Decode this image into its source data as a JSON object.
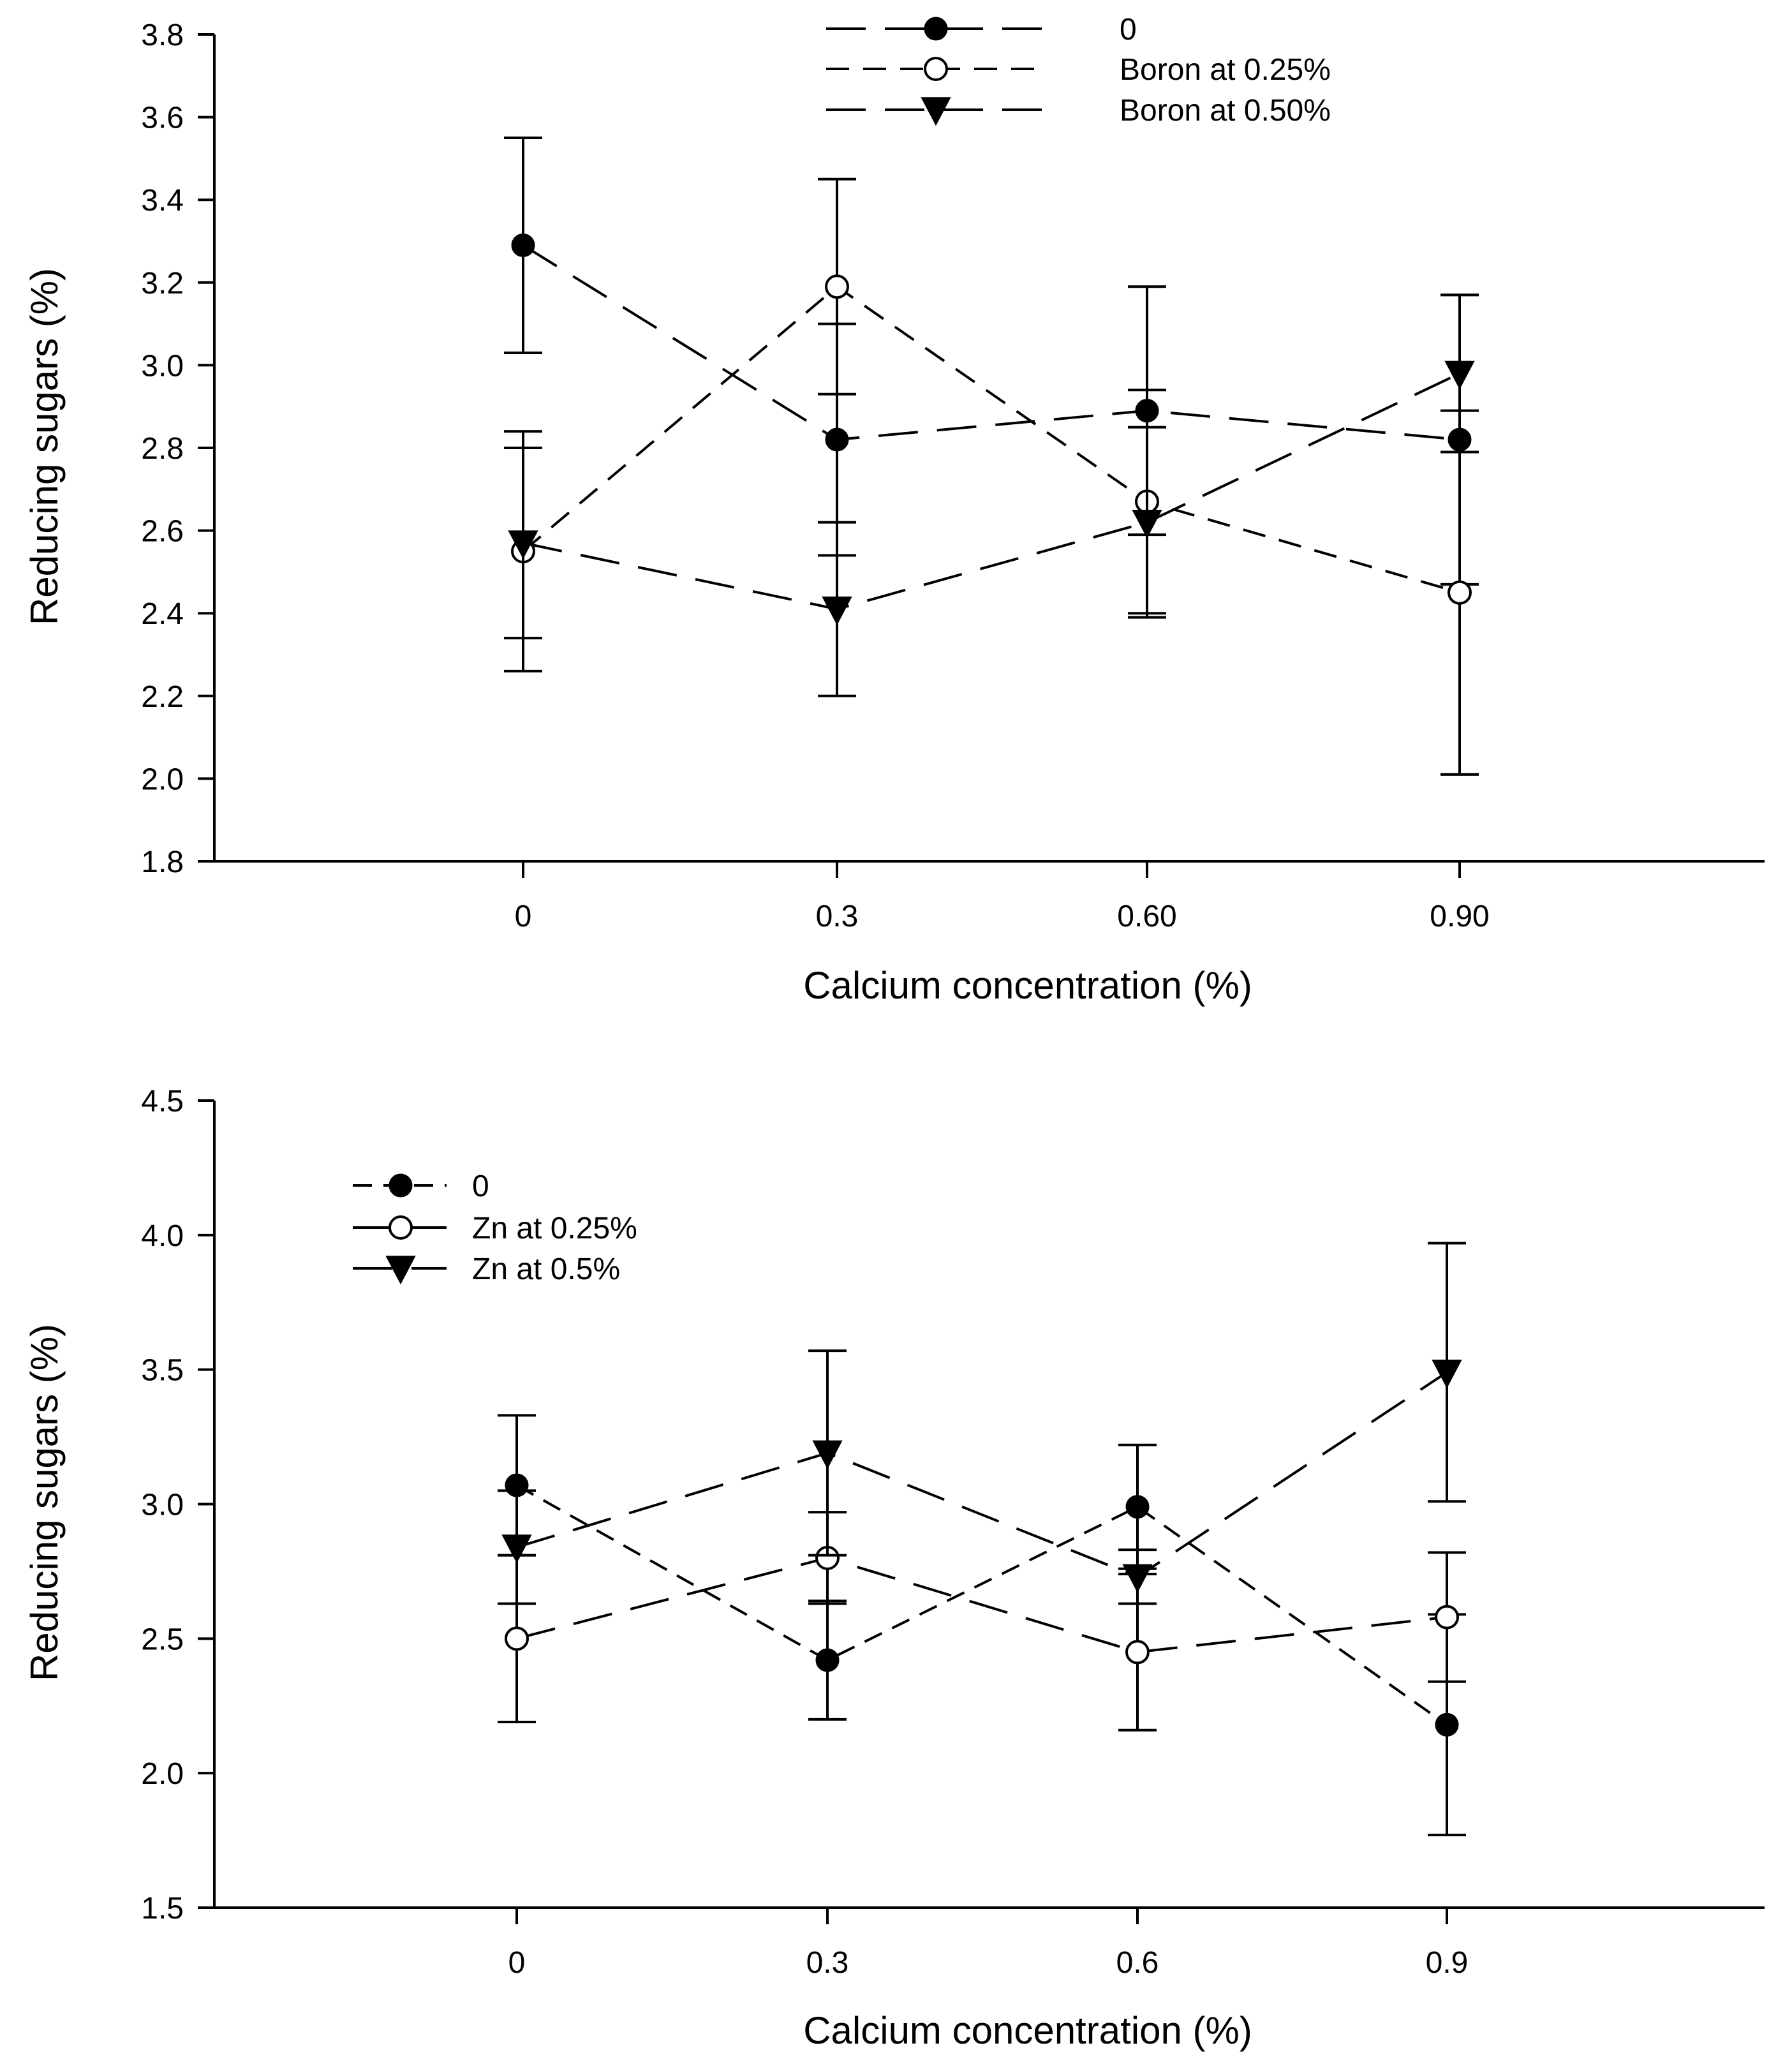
{
  "chart_data": [
    {
      "type": "line",
      "title": "",
      "xlabel": "Calcium concentration (%)",
      "ylabel": "Reducing sugars (%)",
      "categories": [
        "0",
        "0.3",
        "0.60",
        "0.90"
      ],
      "ylim": [
        1.8,
        3.8
      ],
      "yticks": [
        "1.8",
        "2.0",
        "2.2",
        "2.4",
        "2.6",
        "2.8",
        "3.0",
        "3.2",
        "3.4",
        "3.6",
        "3.8"
      ],
      "grid": false,
      "legend_position": "top-center",
      "series": [
        {
          "name": "0",
          "marker": "filled-circle",
          "line_style": "long-dash",
          "values": [
            3.29,
            2.82,
            2.89,
            2.82
          ],
          "errors": [
            0.26,
            0.28,
            0.3,
            0.35
          ]
        },
        {
          "name": "Boron at 0.25%",
          "marker": "open-circle",
          "line_style": "short-dash",
          "values": [
            2.55,
            3.19,
            2.67,
            2.45
          ],
          "errors": [
            0.29,
            0.26,
            0.27,
            0.44
          ]
        },
        {
          "name": "Boron at 0.50%",
          "marker": "filled-triangle-down",
          "line_style": "long-dash",
          "values": [
            2.57,
            2.41,
            2.62,
            2.98
          ],
          "errors": [
            0.23,
            0.21,
            0.23,
            0.19
          ]
        }
      ]
    },
    {
      "type": "line",
      "title": "",
      "xlabel": "Calcium concentration (%)",
      "ylabel": "Reducing sugars (%)",
      "categories": [
        "0",
        "0.3",
        "0.6",
        "0.9"
      ],
      "ylim": [
        1.5,
        4.5
      ],
      "yticks": [
        "1.5",
        "2.0",
        "2.5",
        "3.0",
        "3.5",
        "4.0",
        "4.5"
      ],
      "grid": false,
      "legend_position": "top-left",
      "series": [
        {
          "name": "0",
          "marker": "filled-circle",
          "line_style": "short-dash",
          "values": [
            3.07,
            2.42,
            2.99,
            2.18
          ],
          "errors": [
            0.26,
            0.22,
            0.23,
            0.41
          ]
        },
        {
          "name": "Zn at 0.25%",
          "marker": "open-circle",
          "line_style": "long-dash",
          "values": [
            2.5,
            2.8,
            2.45,
            2.58
          ],
          "errors": [
            0.31,
            0.17,
            0.29,
            0.24
          ]
        },
        {
          "name": "Zn at 0.5%",
          "marker": "filled-triangle-down",
          "line_style": "long-dash",
          "values": [
            2.84,
            3.19,
            2.73,
            3.49
          ],
          "errors": [
            0.21,
            0.38,
            0.1,
            0.48
          ]
        }
      ]
    }
  ]
}
